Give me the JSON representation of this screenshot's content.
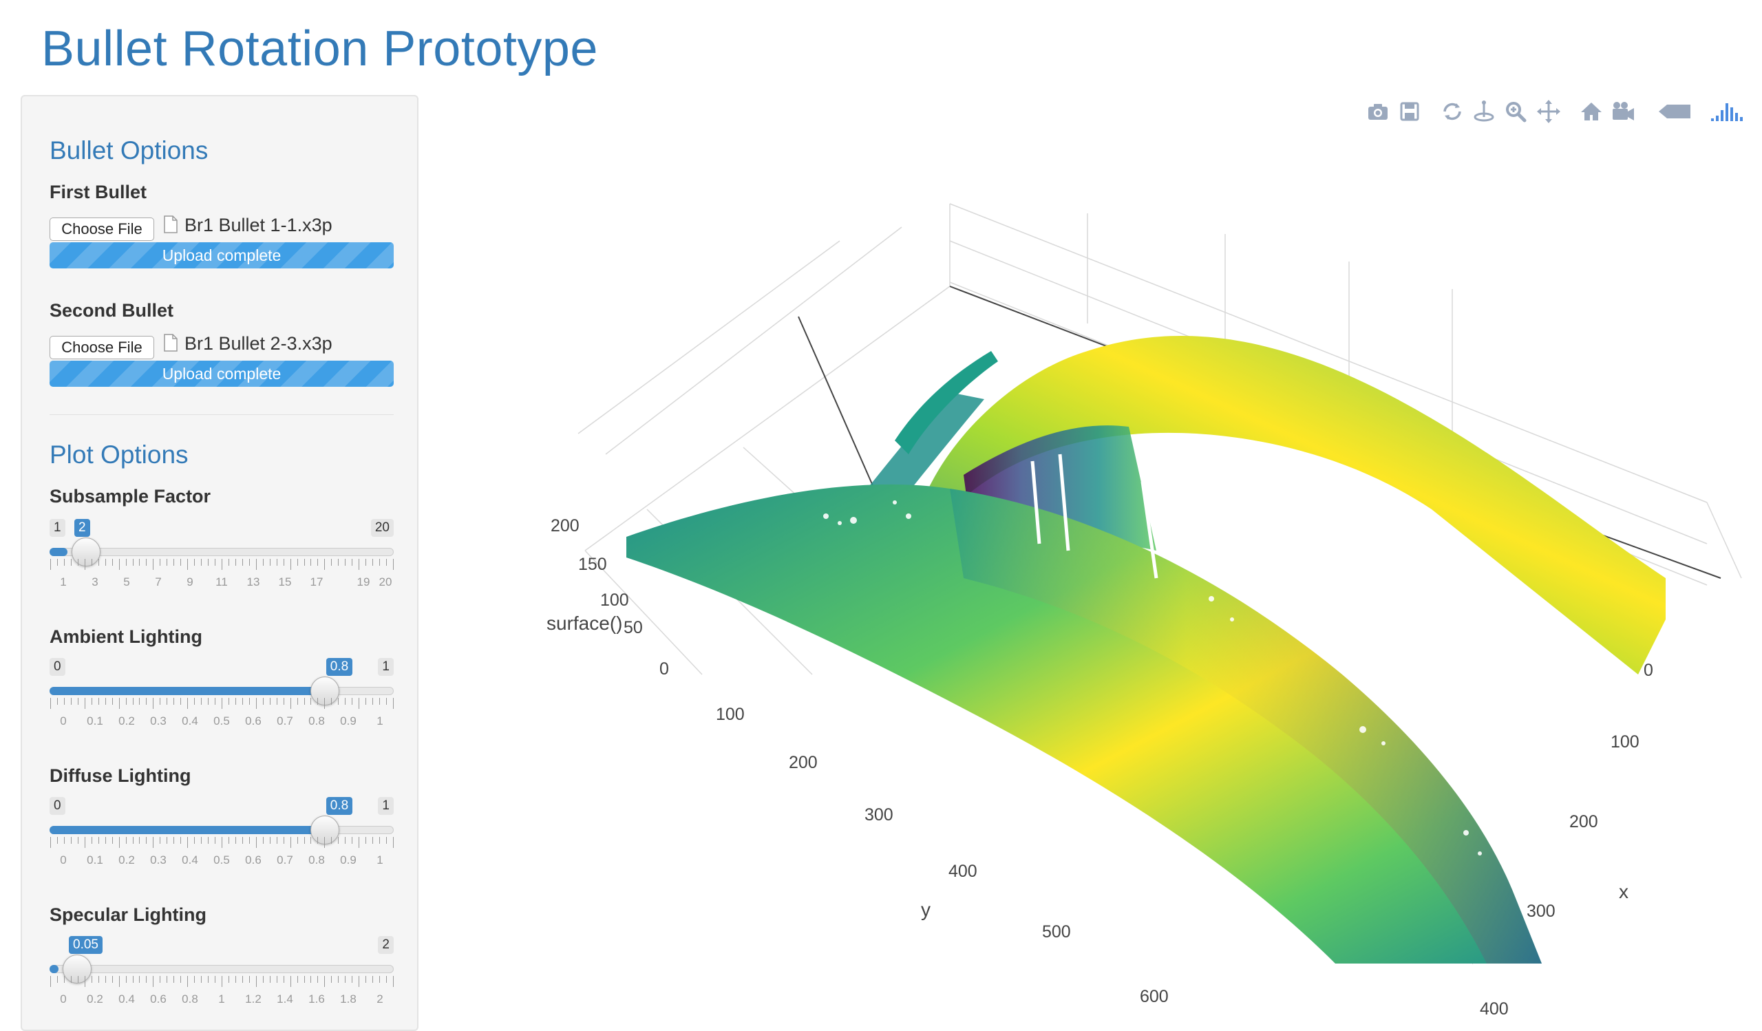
{
  "app": {
    "title": "Bullet Rotation Prototype"
  },
  "sidebar": {
    "bullet_options": {
      "heading": "Bullet Options",
      "first": {
        "label": "First Bullet",
        "button": "Choose File",
        "file_name": "Br1 Bullet 1-1.x3p",
        "status": "Upload complete",
        "progress": 1.0
      },
      "second": {
        "label": "Second Bullet",
        "button": "Choose File",
        "file_name": "Br1 Bullet 2-3.x3p",
        "status": "Upload complete",
        "progress": 1.0
      }
    },
    "plot_options": {
      "heading": "Plot Options",
      "subsample": {
        "label": "Subsample Factor",
        "min": "1",
        "max": "20",
        "value": "2",
        "fraction": 0.0526,
        "ticks": [
          "1",
          "3",
          "5",
          "7",
          "9",
          "11",
          "13",
          "15",
          "17",
          "19",
          "20"
        ]
      },
      "ambient": {
        "label": "Ambient Lighting",
        "min": "0",
        "max": "1",
        "value": "0.8",
        "fraction": 0.8,
        "ticks": [
          "0",
          "0.1",
          "0.2",
          "0.3",
          "0.4",
          "0.5",
          "0.6",
          "0.7",
          "0.8",
          "0.9",
          "1"
        ]
      },
      "diffuse": {
        "label": "Diffuse Lighting",
        "min": "0",
        "max": "1",
        "value": "0.8",
        "fraction": 0.8,
        "ticks": [
          "0",
          "0.1",
          "0.2",
          "0.3",
          "0.4",
          "0.5",
          "0.6",
          "0.7",
          "0.8",
          "0.9",
          "1"
        ]
      },
      "specular": {
        "label": "Specular Lighting",
        "min": "",
        "max": "2",
        "value": "0.05",
        "fraction": 0.025,
        "ticks": [
          "0",
          "0.2",
          "0.4",
          "0.6",
          "0.8",
          "1",
          "1.2",
          "1.4",
          "1.6",
          "1.8",
          "2"
        ]
      }
    }
  },
  "toolbar": {
    "icons": [
      "camera-icon",
      "save-icon",
      "orbit-rotation-icon",
      "turntable-rotation-icon",
      "zoom-icon",
      "pan-icon",
      "home-icon",
      "camera-reset-icon",
      "hover-label-icon",
      "plotly-logo-icon"
    ]
  },
  "plot": {
    "z_axis": {
      "title": "surface()",
      "ticks": [
        "0",
        "50",
        "100",
        "150",
        "200"
      ]
    },
    "y_axis": {
      "title": "y",
      "ticks": [
        "100",
        "200",
        "300",
        "400",
        "500",
        "600"
      ]
    },
    "x_axis": {
      "title": "x",
      "ticks": [
        "0",
        "100",
        "200",
        "300",
        "400"
      ]
    },
    "colorscale": [
      "#440154",
      "#3b528b",
      "#21918c",
      "#5ec962",
      "#fde725"
    ]
  }
}
